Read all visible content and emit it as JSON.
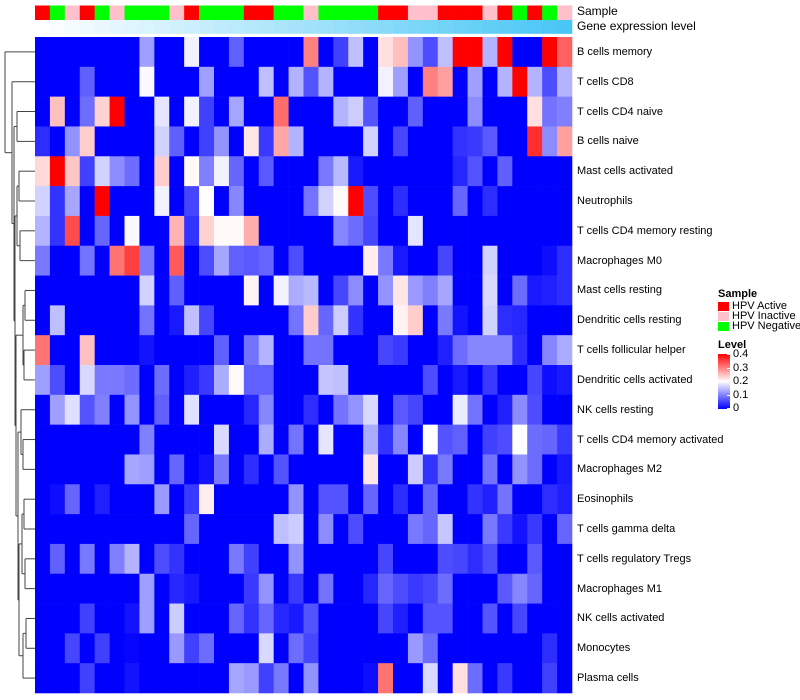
{
  "chart_data": {
    "type": "heatmap",
    "title": "",
    "annotation_labels": {
      "sample": "Sample",
      "gene_expression": "Gene expression level"
    },
    "rows": [
      "B cells memory",
      "T cells CD8",
      "T cells CD4 naive",
      "B cells naive",
      "Mast cells activated",
      "Neutrophils",
      "T cells CD4 memory resting",
      "Macrophages M0",
      "Mast cells resting",
      "Dendritic cells resting",
      "T cells follicular helper",
      "Dendritic cells activated",
      "NK cells resting",
      "T cells CD4 memory activated",
      "Macrophages M2",
      "Eosinophils",
      "T cells gamma delta",
      "T cells regulatory  Tregs",
      "Macrophages M1",
      "NK cells activated",
      "Monocytes",
      "Plasma cells"
    ],
    "sample_annotation": [
      "HPV Active",
      "HPV Negative",
      "HPV Inactive",
      "HPV Active",
      "HPV Negative",
      "HPV Inactive",
      "HPV Negative",
      "HPV Negative",
      "HPV Negative",
      "HPV Inactive",
      "HPV Active",
      "HPV Negative",
      "HPV Negative",
      "HPV Negative",
      "HPV Active",
      "HPV Active",
      "HPV Negative",
      "HPV Negative",
      "HPV Inactive",
      "HPV Negative",
      "HPV Negative",
      "HPV Negative",
      "HPV Negative",
      "HPV Active",
      "HPV Active",
      "HPV Inactive",
      "HPV Inactive",
      "HPV Active",
      "HPV Active",
      "HPV Active",
      "HPV Inactive",
      "HPV Active",
      "HPV Negative",
      "HPV Active",
      "HPV Negative",
      "HPV Inactive"
    ],
    "gene_expression_rank": [
      0,
      1,
      2,
      3,
      4,
      5,
      6,
      7,
      8,
      9,
      10,
      11,
      12,
      13,
      14,
      15,
      16,
      17,
      18,
      19,
      20,
      21,
      22,
      23,
      24,
      25,
      26,
      27,
      28,
      29,
      30,
      31,
      32,
      33,
      34,
      35
    ],
    "values": [
      [
        0,
        0,
        0,
        0,
        0,
        0,
        0,
        0.125,
        0,
        0,
        0.19,
        0,
        0,
        0.075,
        0,
        0,
        0,
        0,
        0.3,
        0,
        0.05,
        0.15,
        0,
        0.225,
        0.25,
        0.115,
        0.06,
        0.15,
        0.4,
        0.4,
        0.14,
        0.4,
        0,
        0,
        0.4,
        0.325
      ],
      [
        0,
        0,
        0,
        0.075,
        0,
        0,
        0,
        0.195,
        0,
        0,
        0,
        0.125,
        0,
        0,
        0,
        0.15,
        0,
        0.14,
        0.065,
        0.14,
        0,
        0,
        0,
        0.19,
        0.125,
        0,
        0.3,
        0.275,
        0,
        0.125,
        0,
        0.14,
        0.4,
        0.14,
        0.06,
        0.14
      ],
      [
        0,
        0.25,
        0,
        0.085,
        0.235,
        0.4,
        0,
        0,
        0.18,
        0,
        0.19,
        0.05,
        0,
        0.13,
        0,
        0,
        0.315,
        0,
        0,
        0,
        0.14,
        0.16,
        0.065,
        0,
        0,
        0.075,
        0,
        0,
        0,
        0.11,
        0,
        0,
        0,
        0.225,
        0.09,
        0.1
      ],
      [
        0.035,
        0,
        0.115,
        0.24,
        0,
        0,
        0,
        0,
        0.165,
        0.075,
        0,
        0.05,
        0.115,
        0,
        0.22,
        0.045,
        0.27,
        0.14,
        0,
        0,
        0,
        0,
        0.165,
        0,
        0.055,
        0,
        0,
        0,
        0.04,
        0.045,
        0.07,
        0,
        0,
        0.365,
        0.11,
        0.275
      ],
      [
        0.23,
        0.4,
        0.245,
        0.05,
        0.165,
        0.11,
        0.085,
        0,
        0.24,
        0,
        0.205,
        0.1,
        0.19,
        0.08,
        0,
        0.07,
        0,
        0,
        0,
        0.095,
        0.145,
        0.02,
        0,
        0,
        0,
        0,
        0,
        0,
        0.03,
        0.065,
        0,
        0.075,
        0,
        0,
        0,
        0
      ],
      [
        0.165,
        0.04,
        0.13,
        0,
        0.4,
        0,
        0,
        0,
        0.19,
        0,
        0.055,
        0.2,
        0,
        0.105,
        0,
        0,
        0,
        0,
        0.09,
        0.165,
        0.205,
        0.4,
        0.06,
        0,
        0.035,
        0,
        0,
        0,
        0.08,
        0,
        0.035,
        0,
        0,
        0,
        0,
        0
      ],
      [
        0.14,
        0.04,
        0.34,
        0,
        0.08,
        0,
        0.195,
        0,
        0,
        0.26,
        0.04,
        0.235,
        0.205,
        0.205,
        0.265,
        0,
        0,
        0,
        0,
        0,
        0.105,
        0.085,
        0.055,
        0,
        0,
        0.18,
        0,
        0,
        0,
        0,
        0,
        0,
        0,
        0,
        0,
        0
      ],
      [
        0.095,
        0,
        0,
        0.09,
        0,
        0.31,
        0.35,
        0.095,
        0,
        0.33,
        0,
        0.06,
        0.13,
        0.075,
        0.07,
        0.08,
        0,
        0.06,
        0,
        0,
        0,
        0,
        0.215,
        0.095,
        0.02,
        0,
        0,
        0.055,
        0,
        0,
        0.165,
        0,
        0,
        0,
        0.01,
        0.035
      ],
      [
        0,
        0,
        0,
        0,
        0,
        0,
        0,
        0.165,
        0,
        0.075,
        0,
        0,
        0,
        0,
        0.21,
        0,
        0.19,
        0.135,
        0.145,
        0,
        0.055,
        0.11,
        0,
        0.115,
        0.22,
        0.12,
        0.1,
        0.13,
        0,
        0,
        0.17,
        0,
        0.085,
        0.02,
        0.025,
        0.035
      ],
      [
        0,
        0.15,
        0,
        0,
        0,
        0,
        0,
        0.09,
        0,
        0.02,
        0.15,
        0.055,
        0,
        0,
        0,
        0,
        0,
        0.09,
        0.24,
        0.08,
        0.16,
        0.04,
        0,
        0,
        0.21,
        0.24,
        0,
        0.095,
        0.015,
        0,
        0.165,
        0.035,
        0.03,
        0,
        0,
        0
      ],
      [
        0.31,
        0,
        0,
        0.25,
        0,
        0,
        0,
        0.015,
        0,
        0,
        0,
        0,
        0.075,
        0,
        0.09,
        0.14,
        0,
        0,
        0.09,
        0.09,
        0,
        0,
        0,
        0.055,
        0.045,
        0,
        0,
        0.025,
        0.085,
        0.105,
        0.105,
        0.105,
        0.035,
        0,
        0.105,
        0.135
      ],
      [
        0.125,
        0.06,
        0,
        0.17,
        0.095,
        0.095,
        0.085,
        0,
        0.085,
        0,
        0.025,
        0.045,
        0.135,
        0.205,
        0.075,
        0.075,
        0,
        0,
        0,
        0.155,
        0.15,
        0,
        0,
        0,
        0,
        0,
        0.06,
        0,
        0.02,
        0,
        0.045,
        0,
        0,
        0.055,
        0.01,
        0.02
      ],
      [
        0,
        0.125,
        0.175,
        0.065,
        0.1,
        0,
        0.115,
        0,
        0.075,
        0,
        0.175,
        0,
        0,
        0,
        0.03,
        0.105,
        0,
        0,
        0.035,
        0,
        0.09,
        0.115,
        0.17,
        0,
        0.07,
        0.055,
        0,
        0,
        0.185,
        0.09,
        0,
        0.025,
        0.11,
        0.06,
        0,
        0
      ],
      [
        0,
        0,
        0,
        0,
        0,
        0,
        0,
        0.1,
        0,
        0,
        0,
        0,
        0.17,
        0,
        0,
        0.135,
        0,
        0.09,
        0,
        0.18,
        0,
        0,
        0.135,
        0.04,
        0.105,
        0,
        0.2,
        0.065,
        0.075,
        0,
        0.05,
        0.06,
        0.2,
        0.085,
        0.08,
        0.045
      ],
      [
        0,
        0,
        0,
        0,
        0,
        0,
        0.13,
        0.125,
        0,
        0.08,
        0,
        0.015,
        0.095,
        0,
        0.035,
        0,
        0.065,
        0,
        0,
        0,
        0,
        0,
        0.22,
        0,
        0,
        0.16,
        0.04,
        0.095,
        0,
        0,
        0.09,
        0,
        0.115,
        0.085,
        0,
        0.02
      ],
      [
        0,
        0.01,
        0.08,
        0,
        0.025,
        0,
        0,
        0,
        0.12,
        0,
        0.045,
        0.215,
        0,
        0,
        0,
        0,
        0,
        0.115,
        0,
        0.065,
        0.065,
        0,
        0.08,
        0,
        0.035,
        0,
        0.08,
        0,
        0,
        0.04,
        0.025,
        0.09,
        0,
        0,
        0.035,
        0.025
      ],
      [
        0,
        0,
        0,
        0,
        0,
        0,
        0,
        0,
        0,
        0,
        0.08,
        0,
        0,
        0,
        0,
        0,
        0.15,
        0.16,
        0,
        0.11,
        0,
        0.06,
        0,
        0,
        0,
        0.095,
        0.08,
        0.155,
        0,
        0,
        0.095,
        0.045,
        0.015,
        0.045,
        0,
        0.08
      ],
      [
        0,
        0.075,
        0,
        0.095,
        0,
        0.1,
        0.14,
        0,
        0.06,
        0.04,
        0,
        0,
        0,
        0.095,
        0.05,
        0,
        0,
        0.115,
        0,
        0,
        0,
        0,
        0,
        0.055,
        0,
        0,
        0,
        0.06,
        0.055,
        0.035,
        0.06,
        0,
        0,
        0.07,
        0,
        0
      ],
      [
        0,
        0,
        0,
        0,
        0,
        0,
        0,
        0.125,
        0,
        0.03,
        0.02,
        0,
        0,
        0,
        0.045,
        0.115,
        0,
        0.045,
        0,
        0.09,
        0,
        0,
        0.03,
        0.08,
        0.06,
        0.045,
        0.055,
        0.085,
        0,
        0,
        0,
        0.07,
        0.105,
        0.08,
        0,
        0
      ],
      [
        0,
        0,
        0,
        0.05,
        0,
        0,
        0.015,
        0.125,
        0,
        0.16,
        0,
        0,
        0,
        0.08,
        0.04,
        0.08,
        0.03,
        0.02,
        0.065,
        0,
        0,
        0,
        0,
        0.055,
        0.025,
        0,
        0.065,
        0.065,
        0,
        0,
        0.065,
        0,
        0.055,
        0,
        0,
        0
      ],
      [
        0,
        0,
        0.055,
        0,
        0.05,
        0,
        0.005,
        0,
        0,
        0.12,
        0.05,
        0.085,
        0,
        0,
        0,
        0.17,
        0,
        0.085,
        0.055,
        0,
        0,
        0,
        0,
        0,
        0,
        0.12,
        0.085,
        0,
        0,
        0,
        0,
        0,
        0,
        0,
        0.035,
        0
      ],
      [
        0,
        0,
        0,
        0.05,
        0,
        0,
        0.015,
        0,
        0,
        0,
        0,
        0,
        0,
        0.13,
        0.12,
        0.05,
        0.095,
        0,
        0.115,
        0,
        0,
        0,
        0.01,
        0.31,
        0,
        0,
        0.17,
        0,
        0.225,
        0.085,
        0,
        0.045,
        0,
        0,
        0.05,
        0
      ]
    ],
    "color_scale": {
      "low": "#0000ff",
      "mid": "#ffffff",
      "high": "#ff0000",
      "range": [
        0,
        0.4
      ]
    },
    "legend": {
      "sample_title": "Sample",
      "sample_items": [
        {
          "label": "HPV Active",
          "color": "#ff0000"
        },
        {
          "label": "HPV Inactive",
          "color": "#ffc0cb"
        },
        {
          "label": "HPV Negative",
          "color": "#00ff00"
        }
      ],
      "level_title": "Level",
      "level_ticks": [
        "0.4",
        "0.3",
        "0.2",
        "0.1",
        "0"
      ],
      "placement": "right"
    },
    "gene_expression_colors": {
      "low": "#ffffff",
      "high": "#48c6f5"
    }
  }
}
